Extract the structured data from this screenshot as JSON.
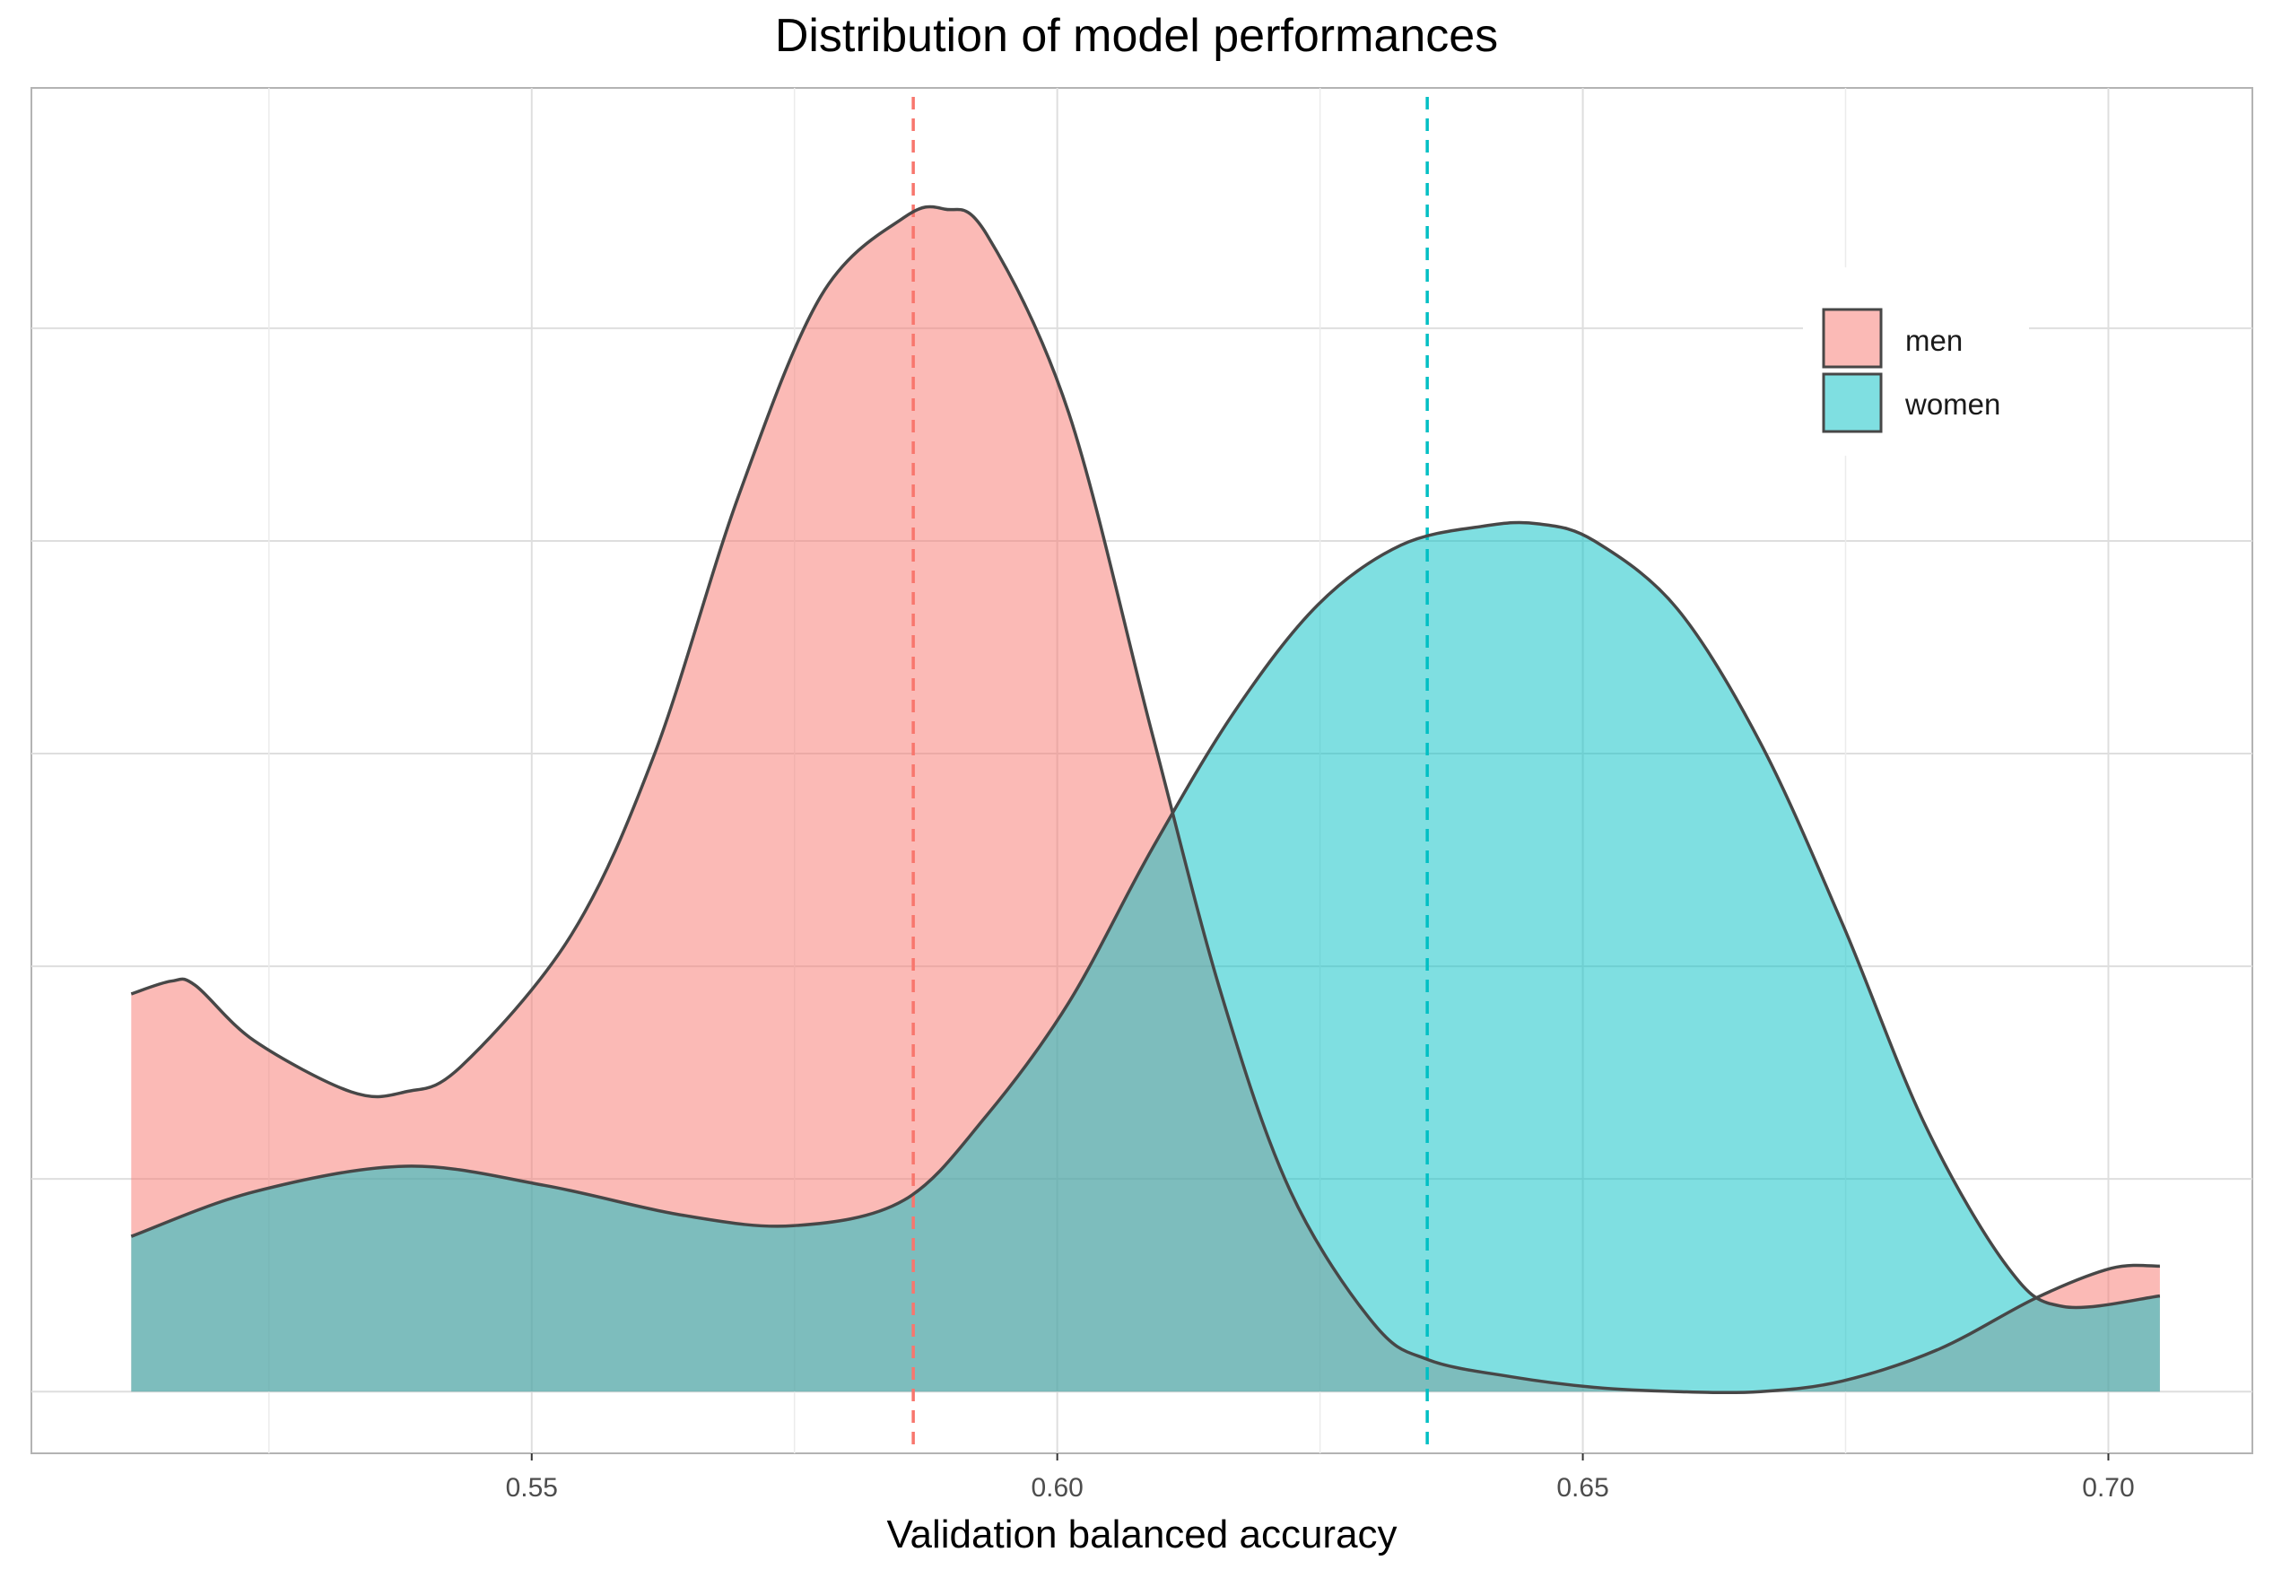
{
  "chart_data": {
    "type": "area",
    "title": "Distribution of model performances",
    "xlabel": "Validation balanced accuracy",
    "ylabel": "",
    "xlim": [
      0.5024,
      0.7137
    ],
    "ylim": [
      -0.29,
      6.13
    ],
    "xticks": [
      0.55,
      0.6,
      0.65,
      0.7
    ],
    "xtick_labels": [
      "0.55",
      "0.60",
      "0.65",
      "0.70"
    ],
    "x_minor_gridlines": [
      0.525,
      0.575,
      0.625,
      0.675
    ],
    "y_gridlines": [
      0,
      1,
      2,
      3,
      4,
      5
    ],
    "y_tick_labels_shown": false,
    "grid": true,
    "legend_position": "top-right",
    "series": [
      {
        "name": "men",
        "fill": "#F8766D",
        "fill_opacity": 0.5,
        "mean": 0.5863,
        "x": [
          0.5119,
          0.5157,
          0.518,
          0.5236,
          0.5328,
          0.538,
          0.5433,
          0.5538,
          0.5617,
          0.5696,
          0.5775,
          0.5854,
          0.5893,
          0.5933,
          0.6011,
          0.609,
          0.6156,
          0.6222,
          0.6301,
          0.6353,
          0.6432,
          0.6511,
          0.659,
          0.6669,
          0.6747,
          0.6839,
          0.6931,
          0.7003,
          0.7049
        ],
        "y": [
          1.87,
          1.93,
          1.91,
          1.65,
          1.41,
          1.41,
          1.53,
          2.15,
          3.0,
          4.2,
          5.15,
          5.52,
          5.56,
          5.44,
          4.6,
          3.1,
          1.87,
          0.94,
          0.32,
          0.15,
          0.07,
          0.02,
          0.0,
          0.0,
          0.05,
          0.2,
          0.44,
          0.58,
          0.59
        ]
      },
      {
        "name": "women",
        "fill": "#00BFC4",
        "fill_opacity": 0.5,
        "mean": 0.6352,
        "x": [
          0.5119,
          0.5236,
          0.538,
          0.5512,
          0.5643,
          0.5749,
          0.5854,
          0.5933,
          0.6011,
          0.609,
          0.6169,
          0.6248,
          0.6327,
          0.6406,
          0.6458,
          0.6511,
          0.659,
          0.6669,
          0.6747,
          0.6826,
          0.6905,
          0.6957,
          0.7049
        ],
        "y": [
          0.73,
          0.94,
          1.06,
          0.97,
          0.83,
          0.78,
          0.9,
          1.3,
          1.83,
          2.55,
          3.2,
          3.7,
          3.98,
          4.07,
          4.08,
          4.0,
          3.68,
          3.05,
          2.2,
          1.25,
          0.58,
          0.4,
          0.45
        ]
      }
    ]
  }
}
